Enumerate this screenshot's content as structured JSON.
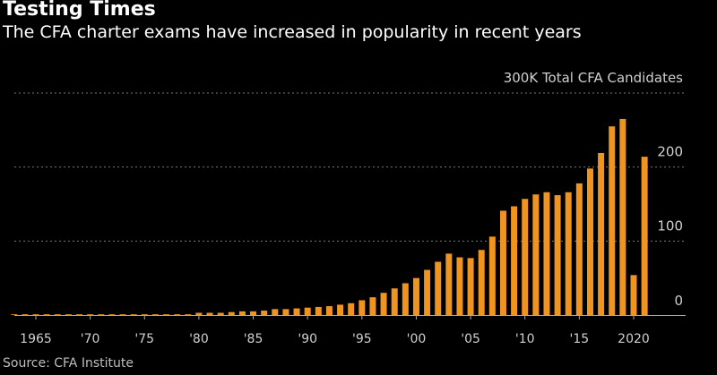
{
  "header": {
    "title": "Testing Times",
    "subtitle": "The CFA charter exams have increased in popularity in recent years"
  },
  "source": "Source: CFA Institute",
  "colors": {
    "bar": "#ef9421",
    "grid": "#7a7a7a",
    "axis": "#aaaaaa",
    "background": "#000000"
  },
  "chart_data": {
    "type": "bar",
    "title": "Testing Times",
    "ylabel": "Total CFA Candidates",
    "unit_label": "300K Total CFA Candidates",
    "ylim": [
      0,
      300
    ],
    "yticks": [
      {
        "value": 0,
        "label": "0"
      },
      {
        "value": 100,
        "label": "100"
      },
      {
        "value": 200,
        "label": "200"
      },
      {
        "value": 300,
        "label": "300K Total CFA Candidates"
      }
    ],
    "xticks": [
      {
        "year": 1965,
        "label": "1965"
      },
      {
        "year": 1970,
        "label": "'70"
      },
      {
        "year": 1975,
        "label": "'75"
      },
      {
        "year": 1980,
        "label": "'80"
      },
      {
        "year": 1985,
        "label": "'85"
      },
      {
        "year": 1990,
        "label": "'90"
      },
      {
        "year": 1995,
        "label": "'95"
      },
      {
        "year": 2000,
        "label": "'00"
      },
      {
        "year": 2005,
        "label": "'05"
      },
      {
        "year": 2010,
        "label": "'10"
      },
      {
        "year": 2015,
        "label": "'15"
      },
      {
        "year": 2020,
        "label": "2020"
      }
    ],
    "series": [
      {
        "name": "Total CFA Candidates (thousands)",
        "x": [
          1963,
          1964,
          1965,
          1966,
          1967,
          1968,
          1969,
          1970,
          1971,
          1972,
          1973,
          1974,
          1975,
          1976,
          1977,
          1978,
          1979,
          1980,
          1981,
          1982,
          1983,
          1984,
          1985,
          1986,
          1987,
          1988,
          1989,
          1990,
          1991,
          1992,
          1993,
          1994,
          1995,
          1996,
          1997,
          1998,
          1999,
          2000,
          2001,
          2002,
          2003,
          2004,
          2005,
          2006,
          2007,
          2008,
          2009,
          2010,
          2011,
          2012,
          2013,
          2014,
          2015,
          2016,
          2017,
          2018,
          2019,
          2020,
          2021
        ],
        "values": [
          1,
          1,
          1,
          1,
          1,
          1,
          1,
          1,
          1,
          1,
          1,
          1,
          1,
          1,
          1,
          1,
          1,
          3,
          3,
          3,
          4,
          5,
          5,
          6,
          8,
          8,
          9,
          10,
          11,
          12,
          14,
          16,
          20,
          24,
          30,
          36,
          43,
          50,
          61,
          72,
          83,
          78,
          77,
          88,
          106,
          141,
          147,
          157,
          163,
          166,
          162,
          166,
          178,
          198,
          219,
          255,
          265,
          54,
          214
        ]
      }
    ]
  }
}
